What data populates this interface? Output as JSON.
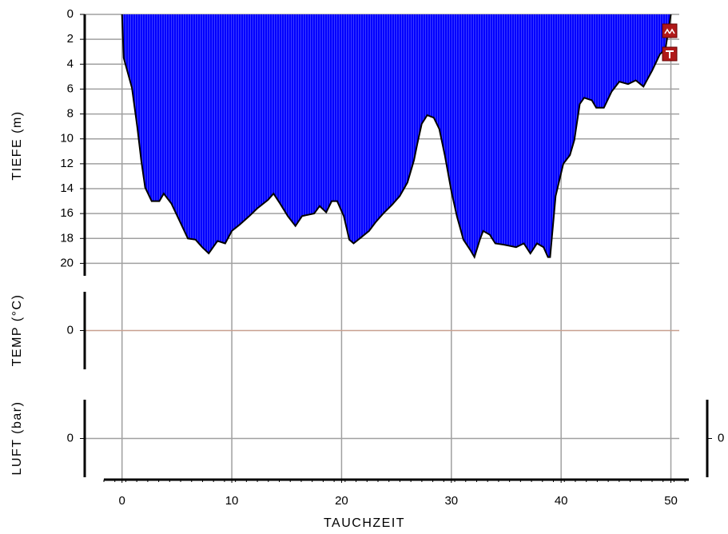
{
  "chart_data": [
    {
      "type": "area",
      "x_label": "TAUCHZEIT",
      "y_label": "TIEFE (m)",
      "x": [
        0,
        0.15,
        0.9,
        1.4,
        1.75,
        2.1,
        2.7,
        3.4,
        3.8,
        4.5,
        5.2,
        6,
        6.7,
        7.3,
        7.9,
        8.7,
        9.4,
        10,
        10.7,
        11.6,
        12.3,
        13.3,
        13.8,
        14.4,
        15.1,
        15.8,
        16.4,
        17.5,
        18,
        18.6,
        19.1,
        19.6,
        20.2,
        20.7,
        21.1,
        21.8,
        22.5,
        23.1,
        23.8,
        24.6,
        25.3,
        26,
        26.6,
        26.9,
        27.3,
        27.8,
        28.4,
        28.9,
        29.4,
        30,
        30.5,
        31.1,
        31.7,
        32.1,
        32.6,
        32.9,
        33.5,
        34,
        34.8,
        35.9,
        36.6,
        37.2,
        37.8,
        38.4,
        38.8,
        39,
        39.5,
        40.2,
        40.8,
        41.2,
        41.7,
        42.1,
        42.8,
        43.2,
        43.9,
        44.6,
        45.3,
        46.1,
        46.8,
        47.5,
        48.3,
        49,
        49.5,
        50
      ],
      "values": [
        0,
        3.5,
        5.9,
        9.1,
        11.7,
        13.9,
        15,
        15,
        14.4,
        15.2,
        16.5,
        18,
        18.1,
        18.7,
        19.2,
        18.2,
        18.4,
        17.4,
        16.9,
        16.2,
        15.6,
        14.9,
        14.4,
        15.2,
        16.2,
        17,
        16.2,
        16,
        15.4,
        15.9,
        15,
        15,
        16.2,
        18.1,
        18.4,
        17.9,
        17.4,
        16.7,
        16,
        15.3,
        14.6,
        13.5,
        11.7,
        10.4,
        8.8,
        8.1,
        8.3,
        9.2,
        11.3,
        14.2,
        16.2,
        18.1,
        18.9,
        19.5,
        18.1,
        17.4,
        17.7,
        18.4,
        18.5,
        18.7,
        18.4,
        19.2,
        18.4,
        18.7,
        19.5,
        19.5,
        14.6,
        12,
        11.3,
        10.1,
        7.2,
        6.7,
        6.9,
        7.5,
        7.5,
        6.2,
        5.4,
        5.6,
        5.3,
        5.8,
        4.5,
        3.2,
        2.8,
        0
      ],
      "color": "#0000ff",
      "line_color": "#000000",
      "xlim": [
        -3.4,
        52.8
      ],
      "xticks": [
        0,
        10,
        20,
        30,
        40,
        50
      ],
      "ylim": [
        21,
        0
      ],
      "yticks": [
        0,
        2,
        4,
        6,
        8,
        10,
        12,
        14,
        16,
        18,
        20
      ],
      "grid": true
    },
    {
      "type": "line",
      "y_label": "TEMP (°C)",
      "ylim": [
        -1,
        1
      ],
      "yticks": [
        0
      ],
      "grid": true,
      "grid_color": "#c8a090"
    },
    {
      "type": "line",
      "y_label": "LUFT (bar)",
      "ylim": [
        -1,
        1
      ],
      "yticks": [
        0
      ],
      "y2lim": [
        -1,
        1
      ],
      "y2ticks": [
        0
      ],
      "grid": true
    }
  ]
}
